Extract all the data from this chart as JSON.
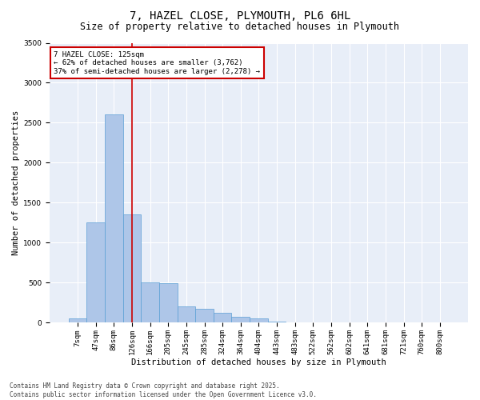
{
  "title": "7, HAZEL CLOSE, PLYMOUTH, PL6 6HL",
  "subtitle": "Size of property relative to detached houses in Plymouth",
  "xlabel": "Distribution of detached houses by size in Plymouth",
  "ylabel": "Number of detached properties",
  "categories": [
    "7sqm",
    "47sqm",
    "86sqm",
    "126sqm",
    "166sqm",
    "205sqm",
    "245sqm",
    "285sqm",
    "324sqm",
    "364sqm",
    "404sqm",
    "443sqm",
    "483sqm",
    "522sqm",
    "562sqm",
    "602sqm",
    "641sqm",
    "681sqm",
    "721sqm",
    "760sqm",
    "800sqm"
  ],
  "values": [
    50,
    1250,
    2600,
    1350,
    500,
    490,
    200,
    175,
    120,
    75,
    50,
    15,
    5,
    2,
    1,
    0,
    0,
    0,
    0,
    0,
    0
  ],
  "bar_color": "#aec6e8",
  "bar_edge_color": "#5a9fd4",
  "vline_x": 3,
  "vline_color": "#cc0000",
  "annotation_text": "7 HAZEL CLOSE: 125sqm\n← 62% of detached houses are smaller (3,762)\n37% of semi-detached houses are larger (2,278) →",
  "annotation_box_color": "#cc0000",
  "ylim": [
    0,
    3500
  ],
  "yticks": [
    0,
    500,
    1000,
    1500,
    2000,
    2500,
    3000,
    3500
  ],
  "bg_color": "#e8eef8",
  "footer_text": "Contains HM Land Registry data © Crown copyright and database right 2025.\nContains public sector information licensed under the Open Government Licence v3.0.",
  "title_fontsize": 10,
  "subtitle_fontsize": 8.5,
  "axis_label_fontsize": 7.5,
  "tick_fontsize": 6.5,
  "annotation_fontsize": 6.5,
  "footer_fontsize": 5.5
}
